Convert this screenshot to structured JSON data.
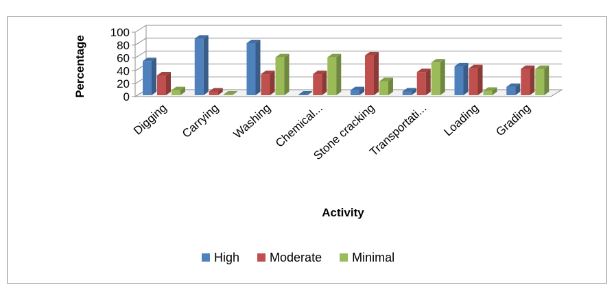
{
  "chart_data": {
    "type": "bar",
    "title": "",
    "xlabel": "Activity",
    "ylabel": "Percentage",
    "ylim": [
      0,
      100
    ],
    "yticks": [
      0,
      20,
      40,
      60,
      80,
      100
    ],
    "grid": true,
    "legend_position": "bottom",
    "categories": [
      "Digging",
      "Carrying",
      "Washing",
      "Chemical...",
      "Stone cracking",
      "Transportati...",
      "Loading",
      "Grading"
    ],
    "series": [
      {
        "name": "High",
        "color": "#4F81BD",
        "values": [
          55,
          90,
          83,
          3,
          10,
          8,
          47,
          15
        ]
      },
      {
        "name": "Moderate",
        "color": "#C0504D",
        "values": [
          33,
          8,
          35,
          35,
          64,
          38,
          44,
          43
        ]
      },
      {
        "name": "Minimal",
        "color": "#9BBB59",
        "values": [
          10,
          1,
          61,
          61,
          24,
          53,
          9,
          43
        ]
      }
    ]
  }
}
